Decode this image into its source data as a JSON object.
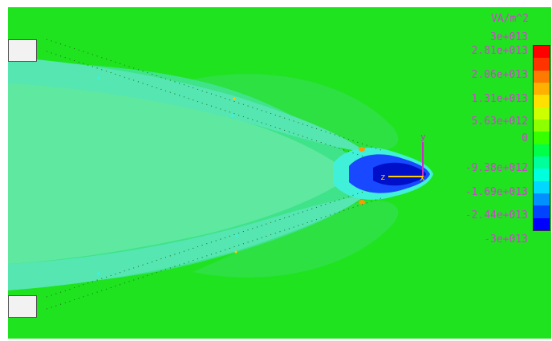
{
  "legend": {
    "unit": "VA/m^2",
    "ticks": [
      "3e+013",
      "2.81e+013",
      "2.06e+013",
      "1.31e+013",
      "5.63e+012",
      "0",
      "-9.38e+012",
      "-1.69e+013",
      "-2.44e+013",
      "-3e+013"
    ],
    "colors": [
      "#ff0000",
      "#ff3300",
      "#ff7a00",
      "#ffb000",
      "#ffe000",
      "#ccff00",
      "#8cff00",
      "#36ff00",
      "#00ff46",
      "#00ff9a",
      "#00ffdc",
      "#00d8ff",
      "#0090ff",
      "#0044ff",
      "#0000ff"
    ]
  },
  "axes": {
    "y_label": "y",
    "z_label": "z",
    "x_label": "x"
  },
  "colors": {
    "background": "#1fe31f",
    "field_light": "#5fe8a0",
    "field_mid": "#33e07a",
    "field_cyan": "#40f0d8",
    "field_blue": "#1040ff",
    "field_deep": "#0010c8",
    "axis": "#ffcc00",
    "magenta": "#c830c8"
  }
}
